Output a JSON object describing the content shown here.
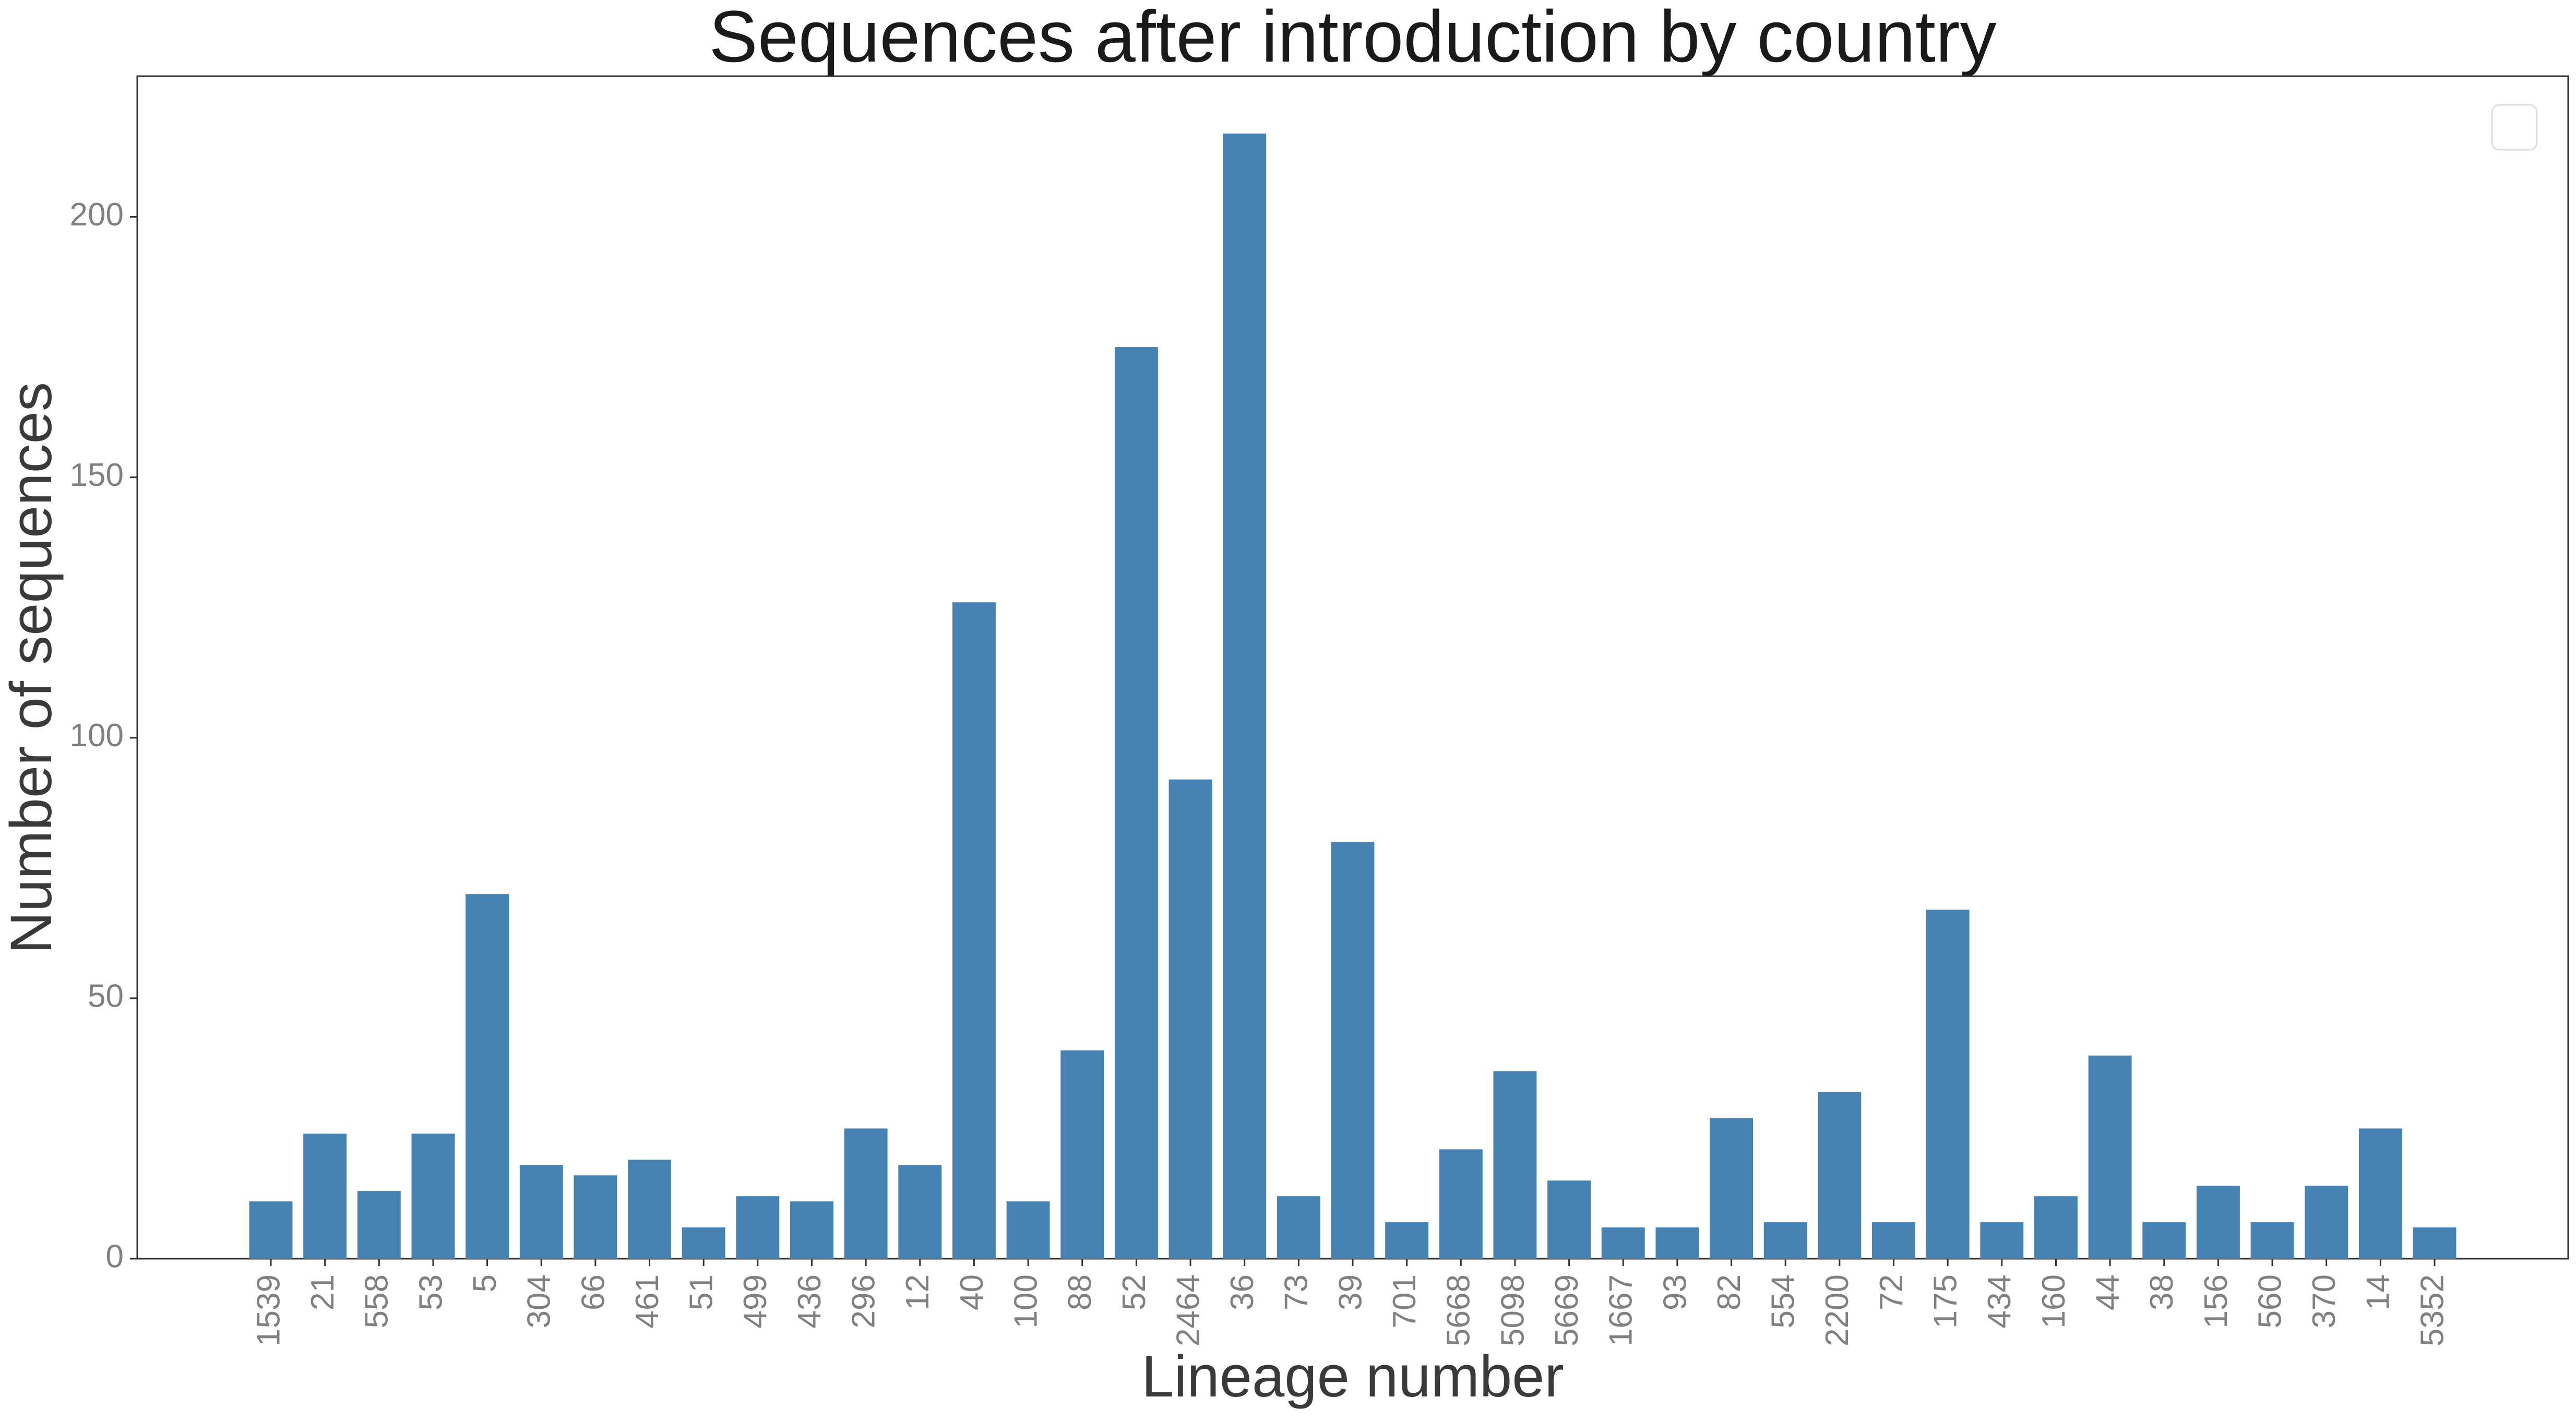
{
  "chart_data": {
    "type": "bar",
    "title": "Sequences after introduction by country",
    "xlabel": "Lineage number",
    "ylabel": "Number of sequences",
    "categories": [
      "1539",
      "21",
      "558",
      "53",
      "5",
      "304",
      "66",
      "461",
      "51",
      "499",
      "436",
      "296",
      "12",
      "40",
      "100",
      "88",
      "52",
      "2464",
      "36",
      "73",
      "39",
      "701",
      "5668",
      "5098",
      "5669",
      "1667",
      "93",
      "82",
      "554",
      "2200",
      "72",
      "175",
      "434",
      "160",
      "44",
      "38",
      "156",
      "560",
      "370",
      "14",
      "5352"
    ],
    "values": [
      11,
      24,
      13,
      24,
      70,
      18,
      16,
      19,
      6,
      12,
      11,
      25,
      18,
      126,
      11,
      40,
      175,
      92,
      216,
      12,
      80,
      7,
      21,
      36,
      15,
      6,
      6,
      27,
      7,
      32,
      7,
      67,
      7,
      12,
      39,
      7,
      14,
      7,
      14,
      25,
      6
    ],
    "yticks": [
      0,
      50,
      100,
      150,
      200
    ],
    "ylim": [
      0,
      227
    ],
    "grid": false,
    "legend": "top-right, empty",
    "bar_color": "#4682b4"
  }
}
